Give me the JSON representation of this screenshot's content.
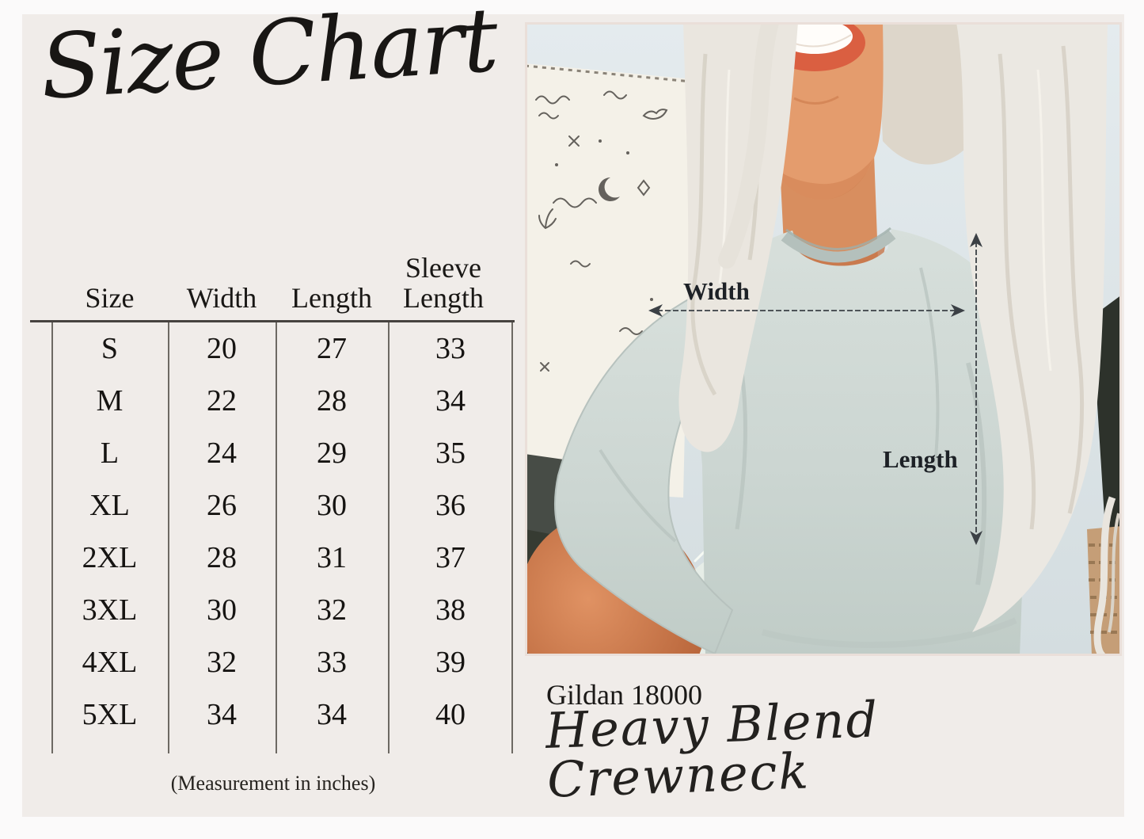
{
  "left_panel": {
    "title": "Size Chart",
    "footnote": "(Measurement in inches)"
  },
  "chart_data": {
    "type": "table",
    "title": "Size Chart",
    "columns": [
      "Size",
      "Width",
      "Length",
      "Sleeve Length"
    ],
    "column_headers_display": [
      [
        "Size"
      ],
      [
        "Width"
      ],
      [
        "Length"
      ],
      [
        "Sleeve",
        "Length"
      ]
    ],
    "rows": [
      [
        "S",
        20,
        27,
        33
      ],
      [
        "M",
        22,
        28,
        34
      ],
      [
        "L",
        24,
        29,
        35
      ],
      [
        "XL",
        26,
        30,
        36
      ],
      [
        "2XL",
        28,
        31,
        37
      ],
      [
        "3XL",
        30,
        32,
        38
      ],
      [
        "4XL",
        32,
        33,
        39
      ],
      [
        "5XL",
        34,
        34,
        40
      ]
    ],
    "units": "inches",
    "units_note": "(Measurement in inches)"
  },
  "photo": {
    "width_label": "Width",
    "length_label": "Length",
    "product_code": "Gildan 18000",
    "product_name": "Heavy Blend Crewneck"
  },
  "colors": {
    "panel_background": "#f0ece9",
    "ink": "#1d1b19",
    "sweatshirt_gray": "#ccd6d2",
    "wall_blue": "#dde6e9",
    "skin_tan": "#d98a5b",
    "annotation": "#3b4045"
  }
}
